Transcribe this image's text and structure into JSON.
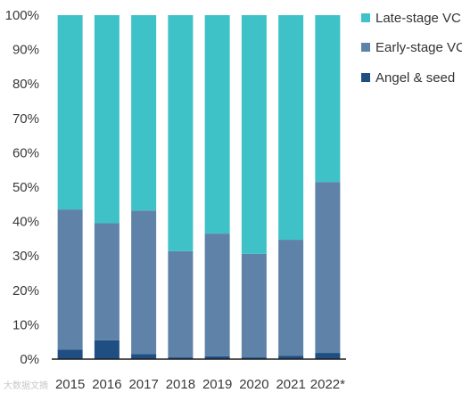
{
  "chart_data": {
    "type": "bar",
    "stacked": true,
    "categories": [
      "2015",
      "2016",
      "2017",
      "2018",
      "2019",
      "2020",
      "2021",
      "2022*"
    ],
    "series": [
      {
        "name": "Angel & seed",
        "color": "#1f4e82",
        "values": [
          2.8,
          5.5,
          1.5,
          0.5,
          0.8,
          0.5,
          1.0,
          1.8
        ]
      },
      {
        "name": "Early-stage VC",
        "color": "#5f82a8",
        "values": [
          40.7,
          34.0,
          41.7,
          30.9,
          35.7,
          30.1,
          33.7,
          49.7
        ]
      },
      {
        "name": "Late-stage VC",
        "color": "#3fc2c7",
        "values": [
          56.5,
          60.5,
          56.8,
          68.6,
          63.5,
          69.4,
          65.3,
          48.5
        ]
      }
    ],
    "y_ticks": [
      "0%",
      "10%",
      "20%",
      "30%",
      "40%",
      "50%",
      "60%",
      "70%",
      "80%",
      "90%",
      "100%"
    ],
    "ylim": [
      0,
      100
    ],
    "legend_position": "right",
    "grid": false
  },
  "legend": [
    {
      "label": "Late-stage VC",
      "color": "#3fc2c7"
    },
    {
      "label": "Early-stage VC",
      "color": "#5f82a8"
    },
    {
      "label": "Angel & seed",
      "color": "#1f4e82"
    }
  ],
  "watermark": "大数据文摘"
}
